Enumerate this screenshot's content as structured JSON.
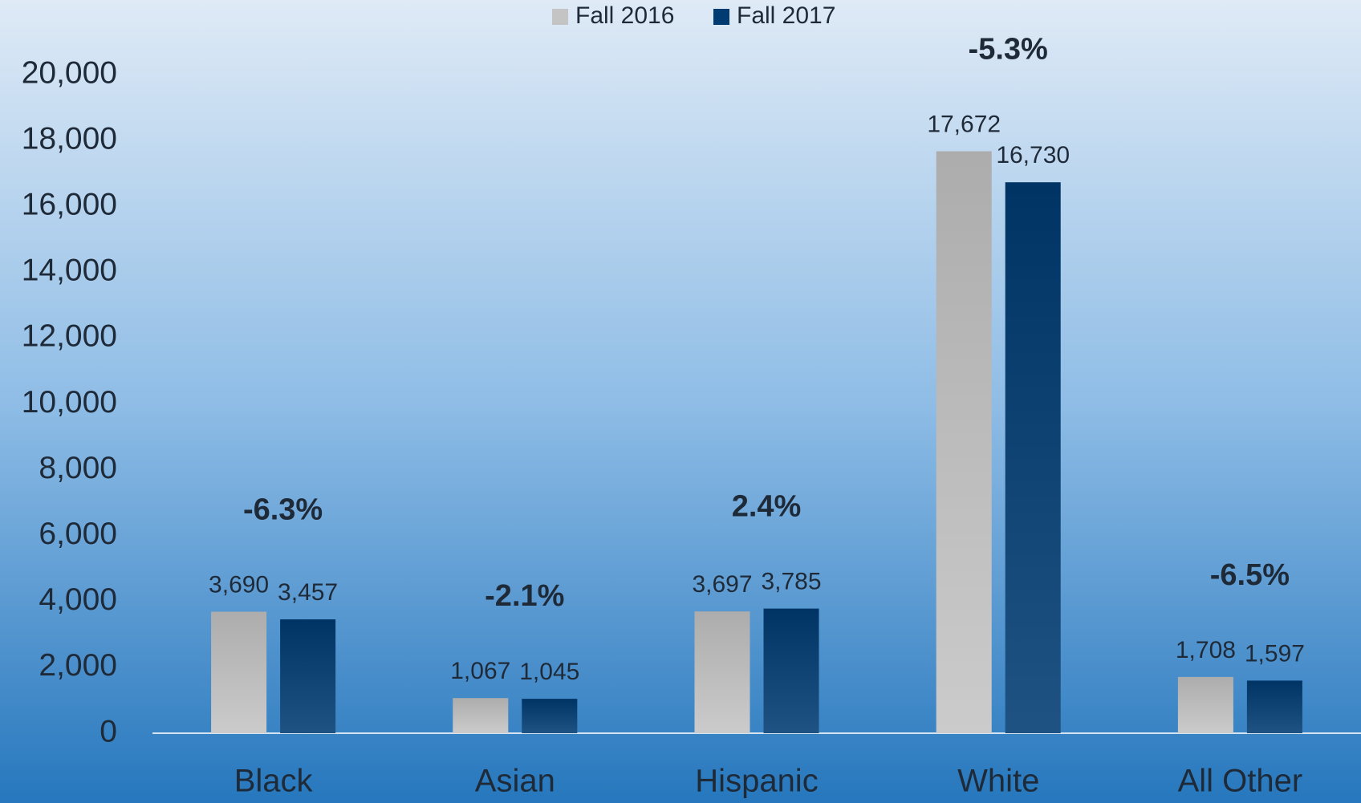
{
  "chart_data": {
    "type": "bar",
    "categories": [
      "Black",
      "Asian",
      "Hispanic",
      "White",
      "All Other"
    ],
    "series": [
      {
        "name": "Fall 2016",
        "color": "#c4c4c4",
        "values": [
          3690,
          1067,
          3697,
          17672,
          1708
        ],
        "value_labels": [
          "3,690",
          "1,067",
          "3,697",
          "17,672",
          "1,708"
        ]
      },
      {
        "name": "Fall 2017",
        "color": "#003b72",
        "values": [
          3457,
          1045,
          3785,
          16730,
          1597
        ],
        "value_labels": [
          "3,457",
          "1,045",
          "3,785",
          "16,730",
          "1,597"
        ]
      }
    ],
    "annotations": [
      "-6.3%",
      "-2.1%",
      "2.4%",
      "-5.3%",
      "-6.5%"
    ],
    "ylim": [
      0,
      20000
    ],
    "yticks": [
      0,
      {
        "value": 2000,
        "label": "2,000"
      },
      {
        "value": 4000,
        "label": "4,000"
      },
      {
        "value": 6000,
        "label": "6,000"
      },
      {
        "value": 8000,
        "label": "8,000"
      },
      {
        "value": 10000,
        "label": "10,000"
      },
      {
        "value": 12000,
        "label": "12,000"
      },
      {
        "value": 14000,
        "label": "14,000"
      },
      {
        "value": 16000,
        "label": "16,000"
      },
      {
        "value": 18000,
        "label": "18,000"
      },
      {
        "value": 20000,
        "label": "20,000"
      }
    ],
    "grid": false,
    "legend": "top"
  }
}
